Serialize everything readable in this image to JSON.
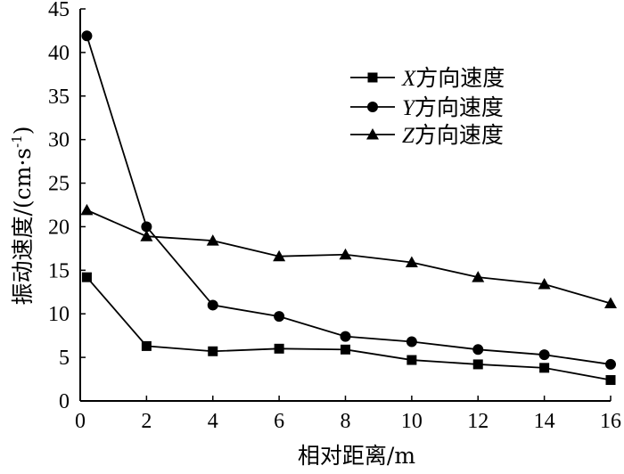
{
  "chart_data": {
    "type": "line",
    "xlabel": "相对距离/m",
    "ylabel": "振动速度/(cm·s",
    "ylabel_sup": "-1",
    "ylabel_close": ")",
    "xlim": [
      0,
      16
    ],
    "ylim": [
      0,
      45
    ],
    "xticks": [
      0,
      2,
      4,
      6,
      8,
      10,
      12,
      14,
      16
    ],
    "yticks": [
      0,
      5,
      10,
      15,
      20,
      25,
      30,
      35,
      40,
      45
    ],
    "grid": false,
    "legend_position": "top-right",
    "series": [
      {
        "name": "X方向速度",
        "axis_letter": "X",
        "suffix": "方向速度",
        "marker": "square",
        "x": [
          0.2,
          2,
          4,
          6,
          8,
          10,
          12,
          14,
          16
        ],
        "y": [
          14.2,
          6.3,
          5.7,
          6.0,
          5.9,
          4.7,
          4.2,
          3.8,
          2.4
        ]
      },
      {
        "name": "Y方向速度",
        "axis_letter": "Y",
        "suffix": "方向速度",
        "marker": "circle",
        "x": [
          0.2,
          2,
          4,
          6,
          8,
          10,
          12,
          14,
          16
        ],
        "y": [
          41.9,
          20.0,
          11.0,
          9.7,
          7.4,
          6.8,
          5.9,
          5.3,
          4.2
        ]
      },
      {
        "name": "Z方向速度",
        "axis_letter": "Z",
        "suffix": "方向速度",
        "marker": "triangle",
        "x": [
          0.2,
          2,
          4,
          6,
          8,
          10,
          12,
          14,
          16
        ],
        "y": [
          21.9,
          18.9,
          18.4,
          16.6,
          16.8,
          15.9,
          14.2,
          13.4,
          11.2
        ]
      }
    ]
  }
}
